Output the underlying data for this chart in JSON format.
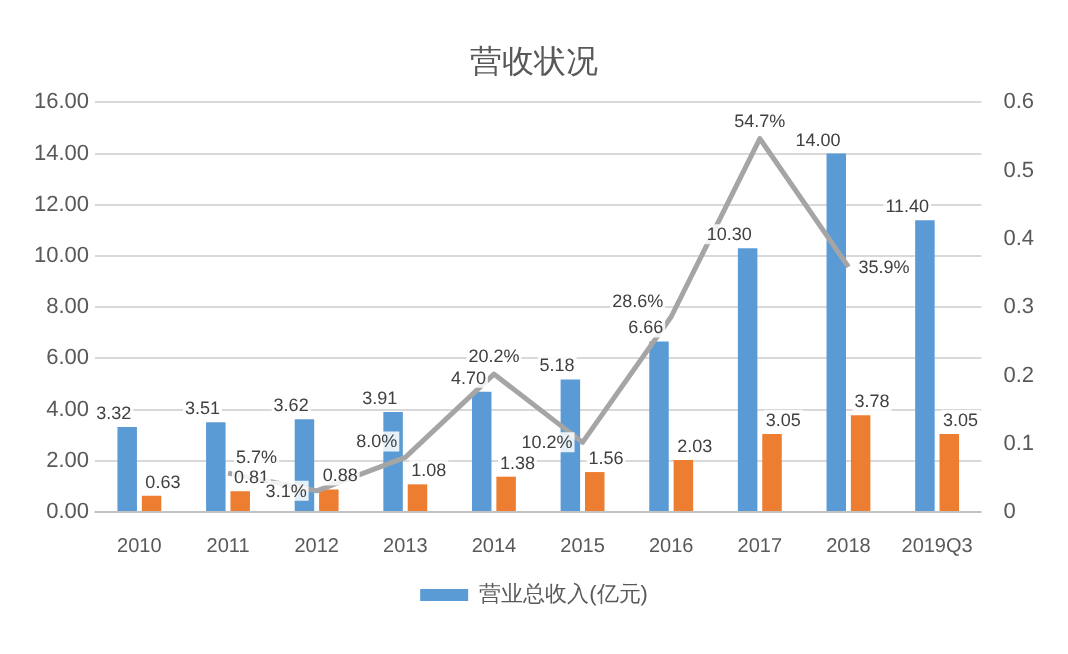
{
  "chart_data": {
    "type": "bar",
    "title": "营收状况",
    "categories": [
      "2010",
      "2011",
      "2012",
      "2013",
      "2014",
      "2015",
      "2016",
      "2017",
      "2018",
      "2019Q3"
    ],
    "series": [
      {
        "name": "营业总收入(亿元)",
        "type": "bar",
        "color": "#5b9bd5",
        "values": [
          3.32,
          3.51,
          3.62,
          3.91,
          4.7,
          5.18,
          6.66,
          10.3,
          14.0,
          11.4
        ],
        "value_labels": [
          "3.32",
          "3.51",
          "3.62",
          "3.91",
          "4.70",
          "5.18",
          "6.66",
          "10.30",
          "14.00",
          "11.40"
        ]
      },
      {
        "type": "bar",
        "color": "#ed7d31",
        "values": [
          0.63,
          0.81,
          0.88,
          1.08,
          1.38,
          1.56,
          2.03,
          3.05,
          3.78,
          3.05
        ],
        "value_labels": [
          "0.63",
          "0.81",
          "0.88",
          "1.08",
          "1.38",
          "1.56",
          "2.03",
          "3.05",
          "3.78",
          "3.05"
        ]
      },
      {
        "type": "line",
        "axis": "y2",
        "color": "#a5a5a5",
        "marker": "none",
        "values": [
          null,
          0.057,
          0.031,
          0.08,
          0.202,
          0.102,
          0.286,
          0.547,
          0.359,
          null
        ],
        "value_labels": [
          null,
          "5.7%",
          "3.1%",
          "8.0%",
          "20.2%",
          "10.2%",
          "28.6%",
          "54.7%",
          "35.9%",
          null
        ]
      }
    ],
    "ylim": [
      0,
      16
    ],
    "yticks": [
      {
        "value": 0,
        "label": "0.00"
      },
      {
        "value": 2,
        "label": "2.00"
      },
      {
        "value": 4,
        "label": "4.00"
      },
      {
        "value": 6,
        "label": "6.00"
      },
      {
        "value": 8,
        "label": "8.00"
      },
      {
        "value": 10,
        "label": "10.00"
      },
      {
        "value": 12,
        "label": "12.00"
      },
      {
        "value": 14,
        "label": "14.00"
      },
      {
        "value": 16,
        "label": "16.00"
      }
    ],
    "y2lim": [
      0,
      0.6
    ],
    "y2ticks": [
      0,
      0.1,
      0.2,
      0.3,
      0.4,
      0.5,
      0.6
    ],
    "grid": "y",
    "legend": "bottom"
  }
}
